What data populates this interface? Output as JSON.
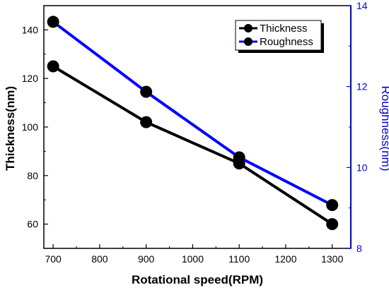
{
  "chart_data": {
    "type": "line",
    "x": [
      700,
      900,
      1100,
      1300
    ],
    "xlabel": "Rotational speed(RPM)",
    "xlim": [
      680,
      1340
    ],
    "xticks": [
      "700",
      "800",
      "900",
      "1000",
      "1100",
      "1200",
      "1300"
    ],
    "ylabel": "Thickness(nm)",
    "ylim": [
      50,
      150
    ],
    "yticks": [
      "60",
      "80",
      "100",
      "120",
      "140"
    ],
    "y2label": "Roughness(nm)",
    "y2lim": [
      8,
      14
    ],
    "y2ticks": [
      "8",
      "10",
      "12",
      "14"
    ],
    "legend_position": "top-right",
    "series": [
      {
        "name": "Thickness",
        "axis": "left",
        "color": "#000000",
        "values": [
          125,
          102,
          85,
          60
        ]
      },
      {
        "name": "Roughness",
        "axis": "right",
        "color": "#0000ff",
        "values": [
          13.6,
          11.87,
          10.25,
          9.07
        ]
      }
    ]
  }
}
